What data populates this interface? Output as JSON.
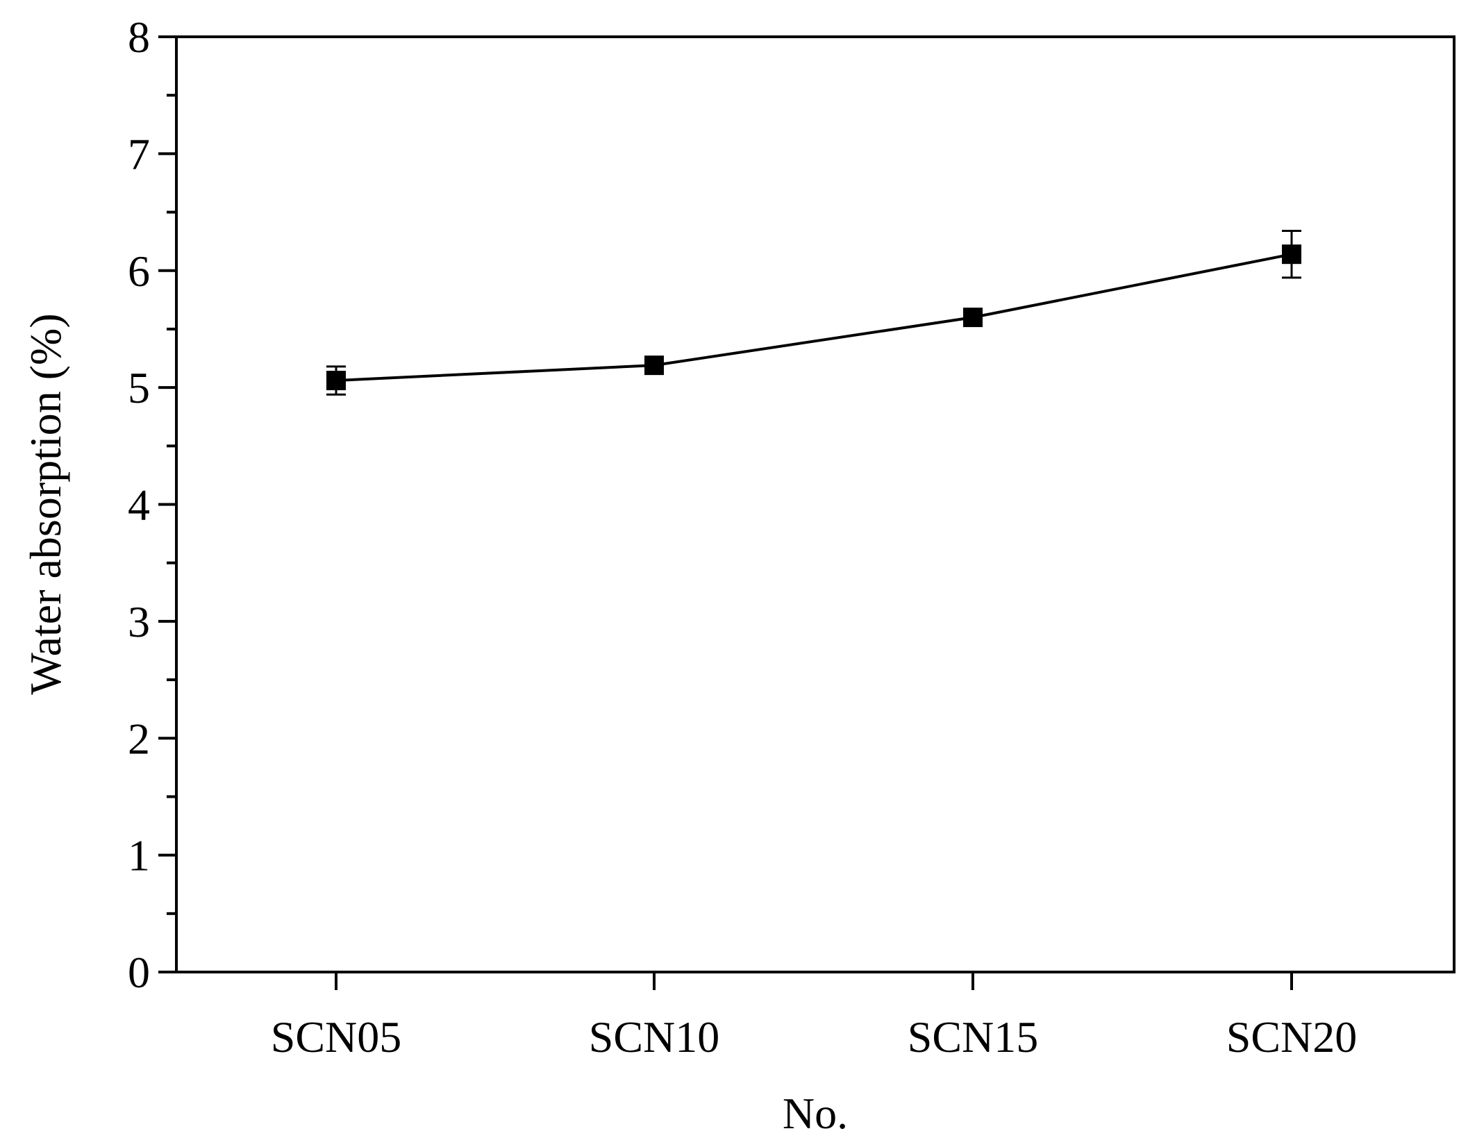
{
  "chart_data": {
    "type": "line",
    "categories": [
      "SCN05",
      "SCN10",
      "SCN15",
      "SCN20"
    ],
    "series": [
      {
        "values": [
          5.06,
          5.19,
          5.6,
          6.14
        ],
        "error": [
          0.12,
          0.05,
          0.04,
          0.2
        ],
        "marker": "square",
        "color": "#000000"
      }
    ],
    "title": "",
    "xlabel": "No.",
    "ylabel": "Water absorption (%)",
    "ylim": [
      0,
      8
    ],
    "yticks": [
      0,
      1,
      2,
      3,
      4,
      5,
      6,
      7,
      8
    ],
    "y_minor_step": 0.5,
    "grid": false,
    "legend": "none"
  }
}
